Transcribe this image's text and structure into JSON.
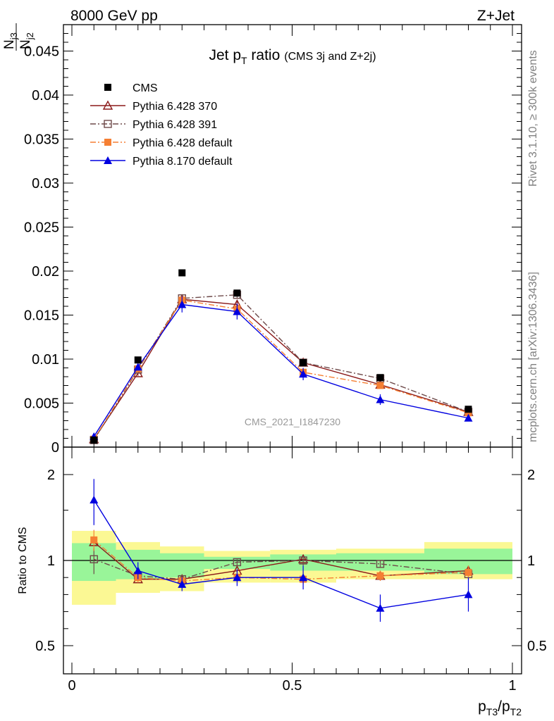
{
  "header": {
    "left": "8000 GeV pp",
    "right": "Z+Jet"
  },
  "side_labels": {
    "rivet": "Rivet 3.1.10, ≥ 300k events",
    "mcplots": "mcplots.cern.ch [arXiv:1306.3436]"
  },
  "chart_data": [
    {
      "type": "scatter",
      "title_main": "Jet p",
      "title_sub": "T",
      "title_main_suffix": " ratio",
      "title_note": "(CMS 3j and Z+2j)",
      "ylabel": {
        "n1": "N",
        "s1": "j3",
        "n2": "N",
        "s2": "j2"
      },
      "analysis_id": "CMS_2021_I1847230",
      "xlim": [
        0,
        1
      ],
      "ylim": [
        0,
        0.048
      ],
      "yticks": [
        "0",
        "0.005",
        "0.01",
        "0.015",
        "0.02",
        "0.025",
        "0.03",
        "0.035",
        "0.04",
        "0.045"
      ],
      "ytick_values": [
        0,
        0.005,
        0.01,
        0.015,
        0.02,
        0.025,
        0.03,
        0.035,
        0.04,
        0.045
      ],
      "x": [
        0.05,
        0.15,
        0.25,
        0.375,
        0.525,
        0.7,
        0.9
      ],
      "series": [
        {
          "name": "CMS",
          "color": "#000000",
          "marker": "filled-square",
          "line": "none",
          "values": [
            0.0008,
            0.0099,
            0.0198,
            0.0175,
            0.0096,
            0.0079,
            0.0043
          ]
        },
        {
          "name": "Pythia 6.428 370",
          "color": "#8b1a1a",
          "marker": "open-triangle",
          "line": "solid",
          "values": [
            0.0009,
            0.0084,
            0.0168,
            0.0162,
            0.0096,
            0.0071,
            0.004
          ],
          "errors": [
            0.0002,
            0.0003,
            0.0004,
            0.0004,
            0.0003,
            0.0003,
            0.0002
          ]
        },
        {
          "name": "Pythia 6.428 391",
          "color": "#6e4a4a",
          "marker": "open-square",
          "line": "dashdot",
          "values": [
            0.0008,
            0.0088,
            0.0169,
            0.0173,
            0.0096,
            0.0078,
            0.004
          ],
          "errors": [
            0.0002,
            0.0003,
            0.0004,
            0.0004,
            0.0003,
            0.0003,
            0.0002
          ]
        },
        {
          "name": "Pythia 6.428 default",
          "color": "#f57f33",
          "marker": "filled-square",
          "line": "dashdot",
          "values": [
            0.0009,
            0.0089,
            0.0167,
            0.0157,
            0.0085,
            0.007,
            0.0039
          ],
          "errors": [
            0.0002,
            0.0003,
            0.0004,
            0.0004,
            0.0003,
            0.0003,
            0.0002
          ]
        },
        {
          "name": "Pythia 8.170 default",
          "color": "#0000e0",
          "marker": "filled-triangle",
          "line": "solid",
          "values": [
            0.0012,
            0.0091,
            0.0162,
            0.0154,
            0.0083,
            0.0054,
            0.0033
          ],
          "errors": [
            0.0002,
            0.0004,
            0.0009,
            0.0009,
            0.0007,
            0.0006,
            0.0003
          ]
        }
      ],
      "legend": "top-left"
    },
    {
      "type": "scatter",
      "ylabel": "Ratio to CMS",
      "xlabel": {
        "p": "p",
        "s1": "T3",
        "slash": "/p",
        "s2": "T2"
      },
      "xlim": [
        0,
        1
      ],
      "ylim": [
        0.35,
        2.25
      ],
      "xticks": [
        "0",
        "0.5",
        "1"
      ],
      "xtick_values": [
        0,
        0.5,
        1
      ],
      "yticks": [
        "0.5",
        "1",
        "2"
      ],
      "ytick_values": [
        0.5,
        1,
        2
      ],
      "bands": {
        "bins": [
          [
            0,
            0.1
          ],
          [
            0.1,
            0.2
          ],
          [
            0.2,
            0.3
          ],
          [
            0.3,
            0.45
          ],
          [
            0.45,
            0.6
          ],
          [
            0.6,
            0.8
          ],
          [
            0.8,
            1.0
          ]
        ],
        "green": [
          [
            0.88,
            1.15
          ],
          [
            0.89,
            1.09
          ],
          [
            0.9,
            1.06
          ],
          [
            0.95,
            1.03
          ],
          [
            0.94,
            1.05
          ],
          [
            0.94,
            1.06
          ],
          [
            0.92,
            1.1
          ]
        ],
        "yellow": [
          [
            0.74,
            1.27
          ],
          [
            0.81,
            1.16
          ],
          [
            0.82,
            1.12
          ],
          [
            0.87,
            1.08
          ],
          [
            0.87,
            1.09
          ],
          [
            0.89,
            1.1
          ],
          [
            0.89,
            1.16
          ]
        ],
        "green_color": "#99f599",
        "yellow_color": "#fbf894"
      },
      "x": [
        0.05,
        0.15,
        0.25,
        0.375,
        0.525,
        0.7,
        0.9
      ],
      "series": [
        {
          "name": "Pythia 6.428 370",
          "values": [
            1.16,
            0.89,
            0.89,
            0.94,
            1.01,
            0.91,
            0.94
          ]
        },
        {
          "name": "Pythia 6.428 391",
          "values": [
            1.01,
            0.91,
            0.89,
            0.99,
            1.0,
            0.98,
            0.92
          ],
          "errors": [
            0.09,
            0.03,
            0.02,
            0.02,
            0.03,
            0.02,
            0.03
          ]
        },
        {
          "name": "Pythia 6.428 default",
          "values": [
            1.18,
            0.9,
            0.88,
            0.9,
            0.89,
            0.91,
            0.93
          ],
          "errors": [
            0.1,
            0.03,
            0.02,
            0.02,
            0.03,
            0.03,
            0.04
          ]
        },
        {
          "name": "Pythia 8.170 default",
          "values": [
            1.63,
            0.94,
            0.86,
            0.9,
            0.9,
            0.72,
            0.8
          ],
          "errors": [
            0.3,
            0.05,
            0.04,
            0.05,
            0.07,
            0.08,
            0.1
          ]
        }
      ]
    }
  ]
}
